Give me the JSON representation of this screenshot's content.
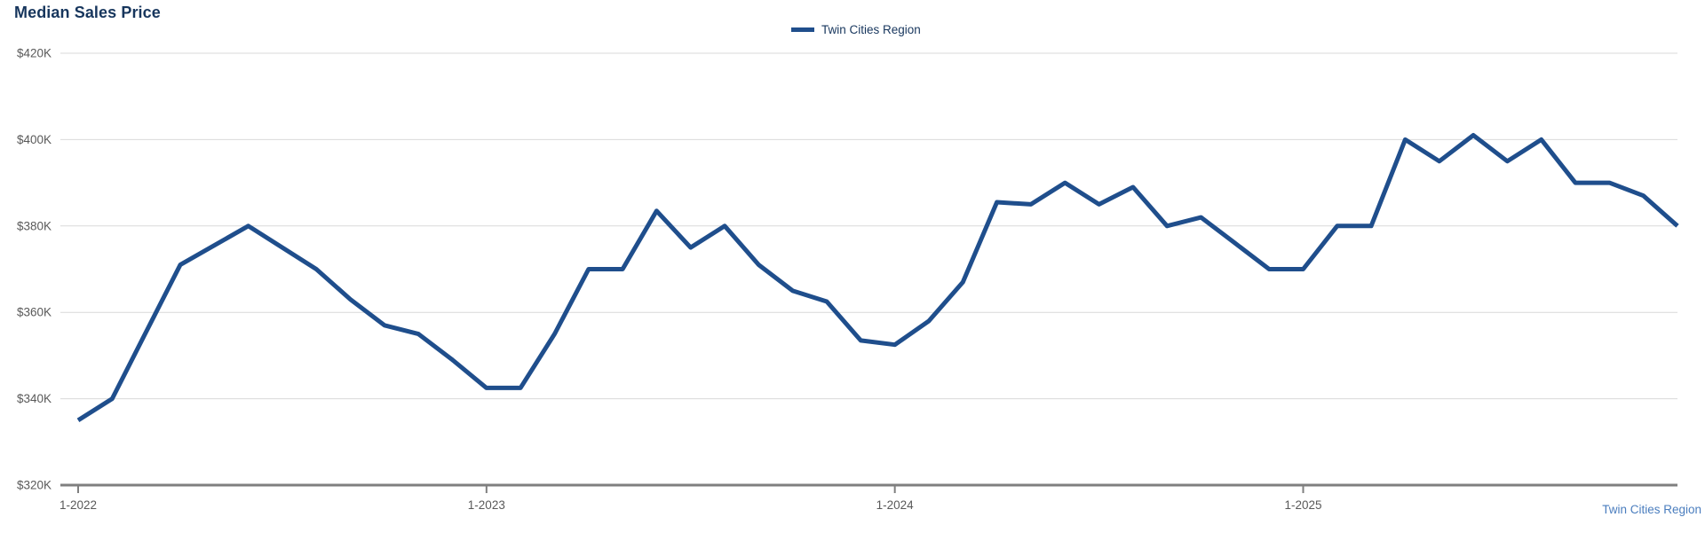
{
  "header": {
    "title": "Median Sales Price"
  },
  "legend": {
    "label": "Twin Cities Region",
    "swatch_color": "#1F4E8C"
  },
  "footer": {
    "region_label": "Twin Cities Region"
  },
  "colors": {
    "line": "#1F4E8C",
    "title_text": "#17365D",
    "legend_text": "#17365D",
    "axis_text": "#595959",
    "gridline": "#D9D9D9",
    "axis_line": "#7F7F7F",
    "footer_text": "#4A7DBE"
  },
  "chart_data": {
    "type": "line",
    "title": "Median Sales Price",
    "ylabel": "",
    "xlabel": "",
    "unit": "USD thousands",
    "ylim": [
      320,
      420
    ],
    "grid": "horizontal",
    "legend_position": "top-center",
    "y_ticks": [
      {
        "value": 420,
        "label": "$420K"
      },
      {
        "value": 400,
        "label": "$400K"
      },
      {
        "value": 380,
        "label": "$380K"
      },
      {
        "value": 360,
        "label": "$360K"
      },
      {
        "value": 340,
        "label": "$340K"
      },
      {
        "value": 320,
        "label": "$320K"
      }
    ],
    "x_tick_labels": [
      "1-2022",
      "1-2023",
      "1-2024",
      "1-2025"
    ],
    "x_tick_month_indices": [
      0,
      12,
      24,
      36
    ],
    "x": [
      "1-2022",
      "2-2022",
      "3-2022",
      "4-2022",
      "5-2022",
      "6-2022",
      "7-2022",
      "8-2022",
      "9-2022",
      "10-2022",
      "11-2022",
      "12-2022",
      "1-2023",
      "2-2023",
      "3-2023",
      "4-2023",
      "5-2023",
      "6-2023",
      "7-2023",
      "8-2023",
      "9-2023",
      "10-2023",
      "11-2023",
      "12-2023",
      "1-2024",
      "2-2024",
      "3-2024",
      "4-2024",
      "5-2024",
      "6-2024",
      "7-2024",
      "8-2024",
      "9-2024",
      "10-2024",
      "11-2024",
      "12-2024",
      "1-2025",
      "2-2025",
      "3-2025",
      "4-2025",
      "5-2025",
      "6-2025",
      "7-2025",
      "8-2025",
      "9-2025",
      "10-2025",
      "11-2025",
      "12-2025"
    ],
    "series": [
      {
        "name": "Twin Cities Region",
        "color": "#1F4E8C",
        "values": [
          335,
          340,
          355.5,
          371,
          375.5,
          380,
          375,
          370,
          363,
          357,
          355,
          349,
          342.5,
          342.5,
          355,
          370,
          370,
          383.5,
          375,
          380,
          371,
          365,
          362.5,
          353.5,
          352.5,
          358,
          367,
          385.5,
          385,
          390,
          385,
          389,
          380,
          382,
          376,
          370,
          370,
          380,
          380,
          400,
          395,
          401,
          395,
          400,
          390,
          390,
          387,
          380
        ]
      }
    ]
  }
}
